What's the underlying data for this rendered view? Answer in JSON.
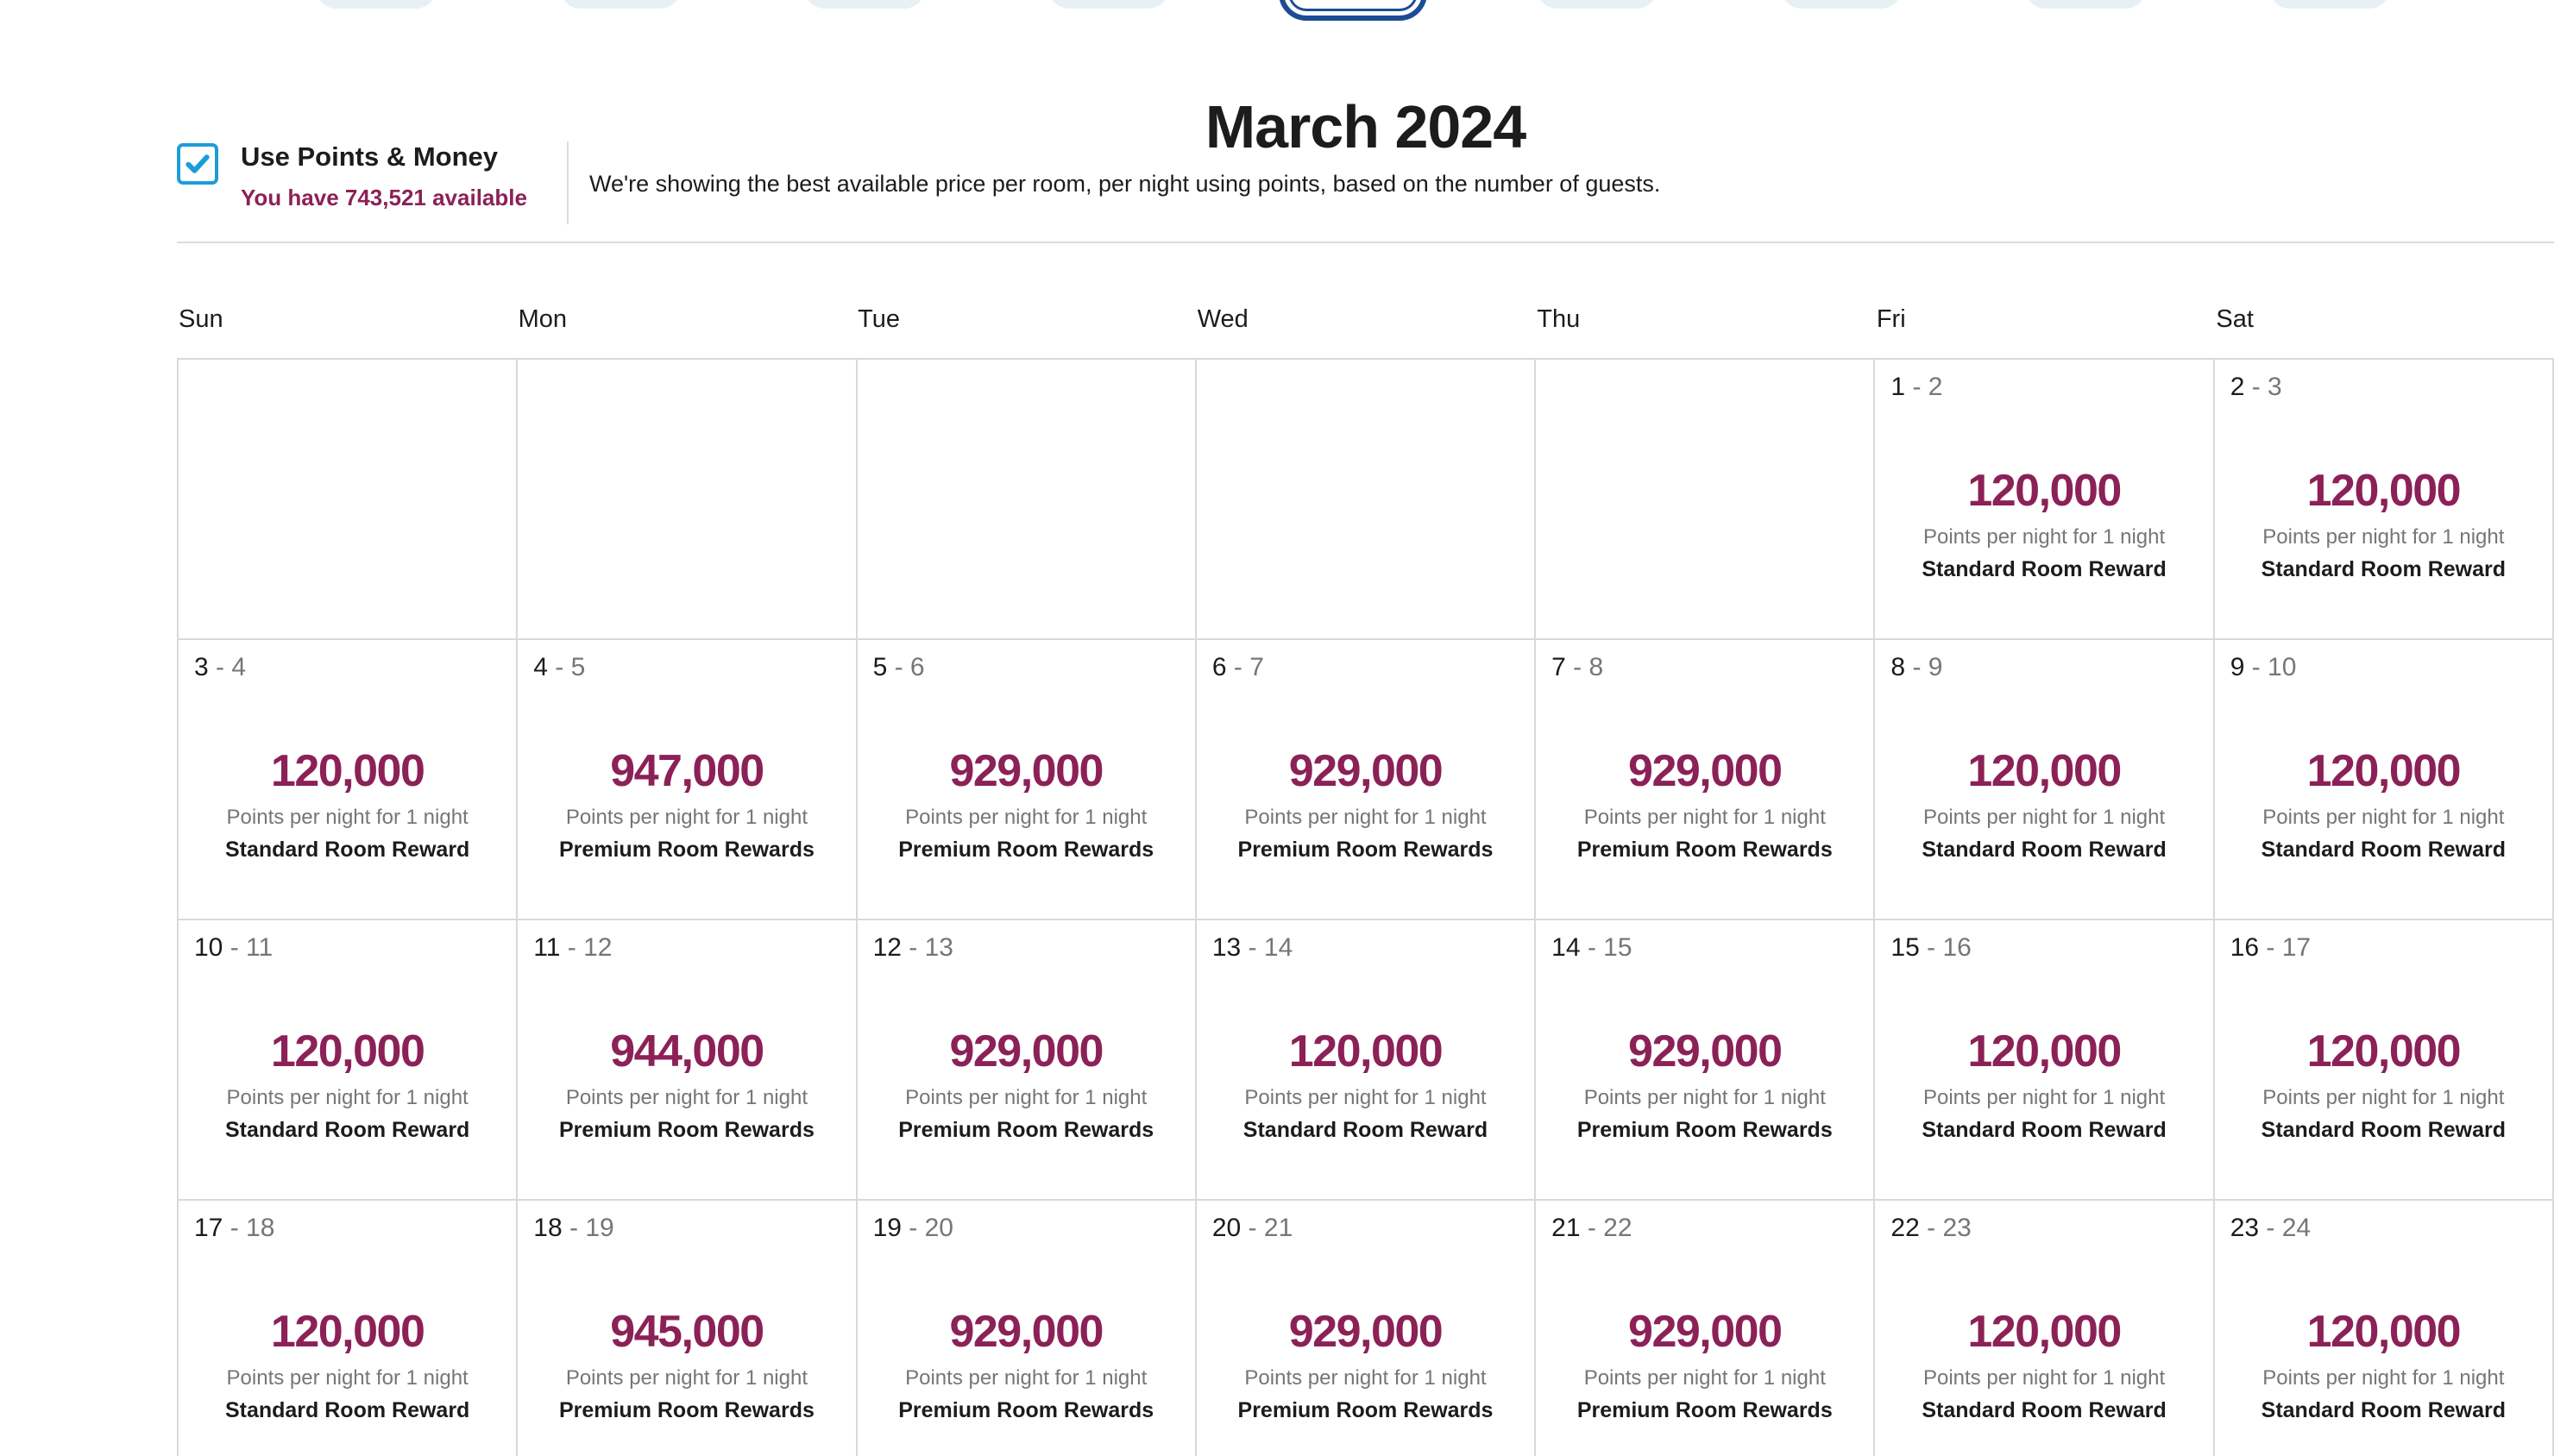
{
  "header": {
    "month_title": "March 2024",
    "month_pills": [
      {
        "selected": false
      },
      {
        "selected": false
      },
      {
        "selected": false
      },
      {
        "selected": false
      },
      {
        "selected": true
      },
      {
        "selected": false
      },
      {
        "selected": false
      },
      {
        "selected": false
      },
      {
        "selected": false
      }
    ]
  },
  "points_bar": {
    "checkbox_checked": true,
    "label": "Use Points & Money",
    "balance": "You have 743,521 available",
    "description": "We're showing the best available price per room, per night using points, based on the number of guests."
  },
  "calendar": {
    "weekday_headers": [
      "Sun",
      "Mon",
      "Tue",
      "Wed",
      "Thu",
      "Fri",
      "Sat"
    ],
    "caption": "Points per night for 1 night",
    "weeks": [
      [
        null,
        null,
        null,
        null,
        null,
        {
          "start": "1",
          "end": "2",
          "points": "120,000",
          "room": "Standard Room Reward"
        },
        {
          "start": "2",
          "end": "3",
          "points": "120,000",
          "room": "Standard Room Reward"
        }
      ],
      [
        {
          "start": "3",
          "end": "4",
          "points": "120,000",
          "room": "Standard Room Reward"
        },
        {
          "start": "4",
          "end": "5",
          "points": "947,000",
          "room": "Premium Room Rewards"
        },
        {
          "start": "5",
          "end": "6",
          "points": "929,000",
          "room": "Premium Room Rewards"
        },
        {
          "start": "6",
          "end": "7",
          "points": "929,000",
          "room": "Premium Room Rewards"
        },
        {
          "start": "7",
          "end": "8",
          "points": "929,000",
          "room": "Premium Room Rewards"
        },
        {
          "start": "8",
          "end": "9",
          "points": "120,000",
          "room": "Standard Room Reward"
        },
        {
          "start": "9",
          "end": "10",
          "points": "120,000",
          "room": "Standard Room Reward"
        }
      ],
      [
        {
          "start": "10",
          "end": "11",
          "points": "120,000",
          "room": "Standard Room Reward"
        },
        {
          "start": "11",
          "end": "12",
          "points": "944,000",
          "room": "Premium Room Rewards"
        },
        {
          "start": "12",
          "end": "13",
          "points": "929,000",
          "room": "Premium Room Rewards"
        },
        {
          "start": "13",
          "end": "14",
          "points": "120,000",
          "room": "Standard Room Reward"
        },
        {
          "start": "14",
          "end": "15",
          "points": "929,000",
          "room": "Premium Room Rewards"
        },
        {
          "start": "15",
          "end": "16",
          "points": "120,000",
          "room": "Standard Room Reward"
        },
        {
          "start": "16",
          "end": "17",
          "points": "120,000",
          "room": "Standard Room Reward"
        }
      ],
      [
        {
          "start": "17",
          "end": "18",
          "points": "120,000",
          "room": "Standard Room Reward"
        },
        {
          "start": "18",
          "end": "19",
          "points": "945,000",
          "room": "Premium Room Rewards"
        },
        {
          "start": "19",
          "end": "20",
          "points": "929,000",
          "room": "Premium Room Rewards"
        },
        {
          "start": "20",
          "end": "21",
          "points": "929,000",
          "room": "Premium Room Rewards"
        },
        {
          "start": "21",
          "end": "22",
          "points": "929,000",
          "room": "Premium Room Rewards"
        },
        {
          "start": "22",
          "end": "23",
          "points": "120,000",
          "room": "Standard Room Reward"
        },
        {
          "start": "23",
          "end": "24",
          "points": "120,000",
          "room": "Standard Room Reward"
        }
      ]
    ]
  },
  "colors": {
    "points_maroon": "#8b2157",
    "checkbox_blue": "#1e9cd8",
    "selected_pill_navy": "#1c4d94",
    "pill_fill": "#e7f1f5",
    "grid_border": "#d9d9d9",
    "muted_text": "#767676",
    "dark_text": "#1c1c1c"
  }
}
